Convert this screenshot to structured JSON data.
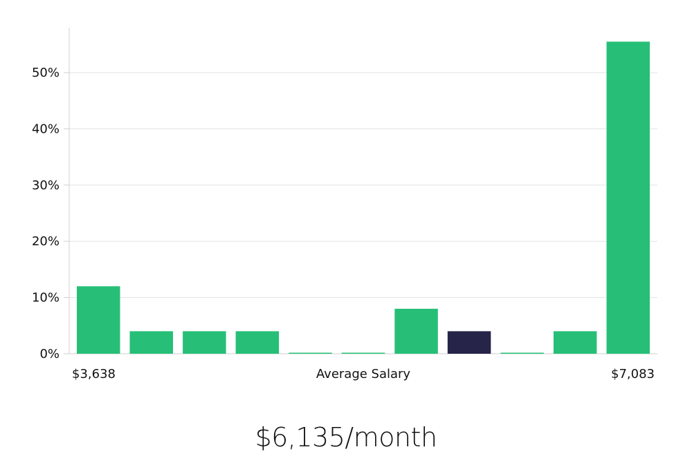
{
  "chart_data": {
    "type": "bar",
    "values": [
      12,
      4,
      4,
      4,
      0,
      0,
      8,
      4,
      0,
      4,
      55.5
    ],
    "highlight_index": 7,
    "ylim": [
      0,
      58
    ],
    "yticks": [
      0,
      10,
      20,
      30,
      40,
      50
    ],
    "ytick_format": "{v}%",
    "grid": true,
    "x_start_label": "$3,638",
    "x_end_label": "$7,083",
    "xlabel": "Average Salary",
    "colors": {
      "bar": "#27bf77",
      "highlight": "#27244a",
      "grid": "#e2e2e2",
      "axis": "#cfcfcf"
    }
  },
  "headline": "$6,135/month"
}
